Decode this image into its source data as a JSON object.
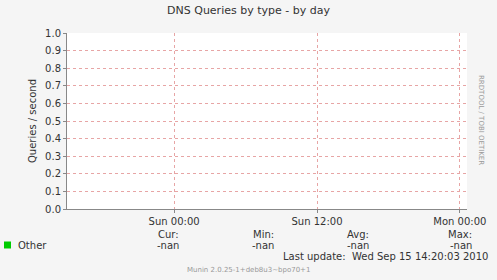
{
  "chart_data": {
    "type": "line",
    "title": "DNS Queries by type - by day",
    "y_label": "Queries / second",
    "x": [],
    "xlim": [
      -9,
      24.6
    ],
    "xticks": [
      {
        "value": 0,
        "label": "Sun 00:00"
      },
      {
        "value": 12,
        "label": "Sun 12:00"
      },
      {
        "value": 24,
        "label": "Mon 00:00"
      }
    ],
    "ylim": [
      0,
      1
    ],
    "yticks": [
      {
        "value": 0,
        "label": "0.0"
      },
      0.1,
      0.2,
      0.3,
      0.4,
      0.5,
      0.6,
      0.7,
      0.8,
      0.9,
      {
        "value": 1,
        "label": "1.0"
      }
    ],
    "grid": true,
    "stat_headers": [
      "Cur:",
      "Min:",
      "Avg:",
      "Max:"
    ],
    "series": [
      {
        "name": "Other",
        "color": "#00cc00",
        "values": [],
        "stats": [
          "-nan",
          "-nan",
          "-nan",
          "-nan"
        ]
      }
    ],
    "annotations": [
      "RRDTOOL / TOBI OETIKER",
      "Last update:  Wed Sep 15 14:20:03 2010",
      "Munin 2.0.25-1+deb8u3~bpo70+1"
    ]
  }
}
